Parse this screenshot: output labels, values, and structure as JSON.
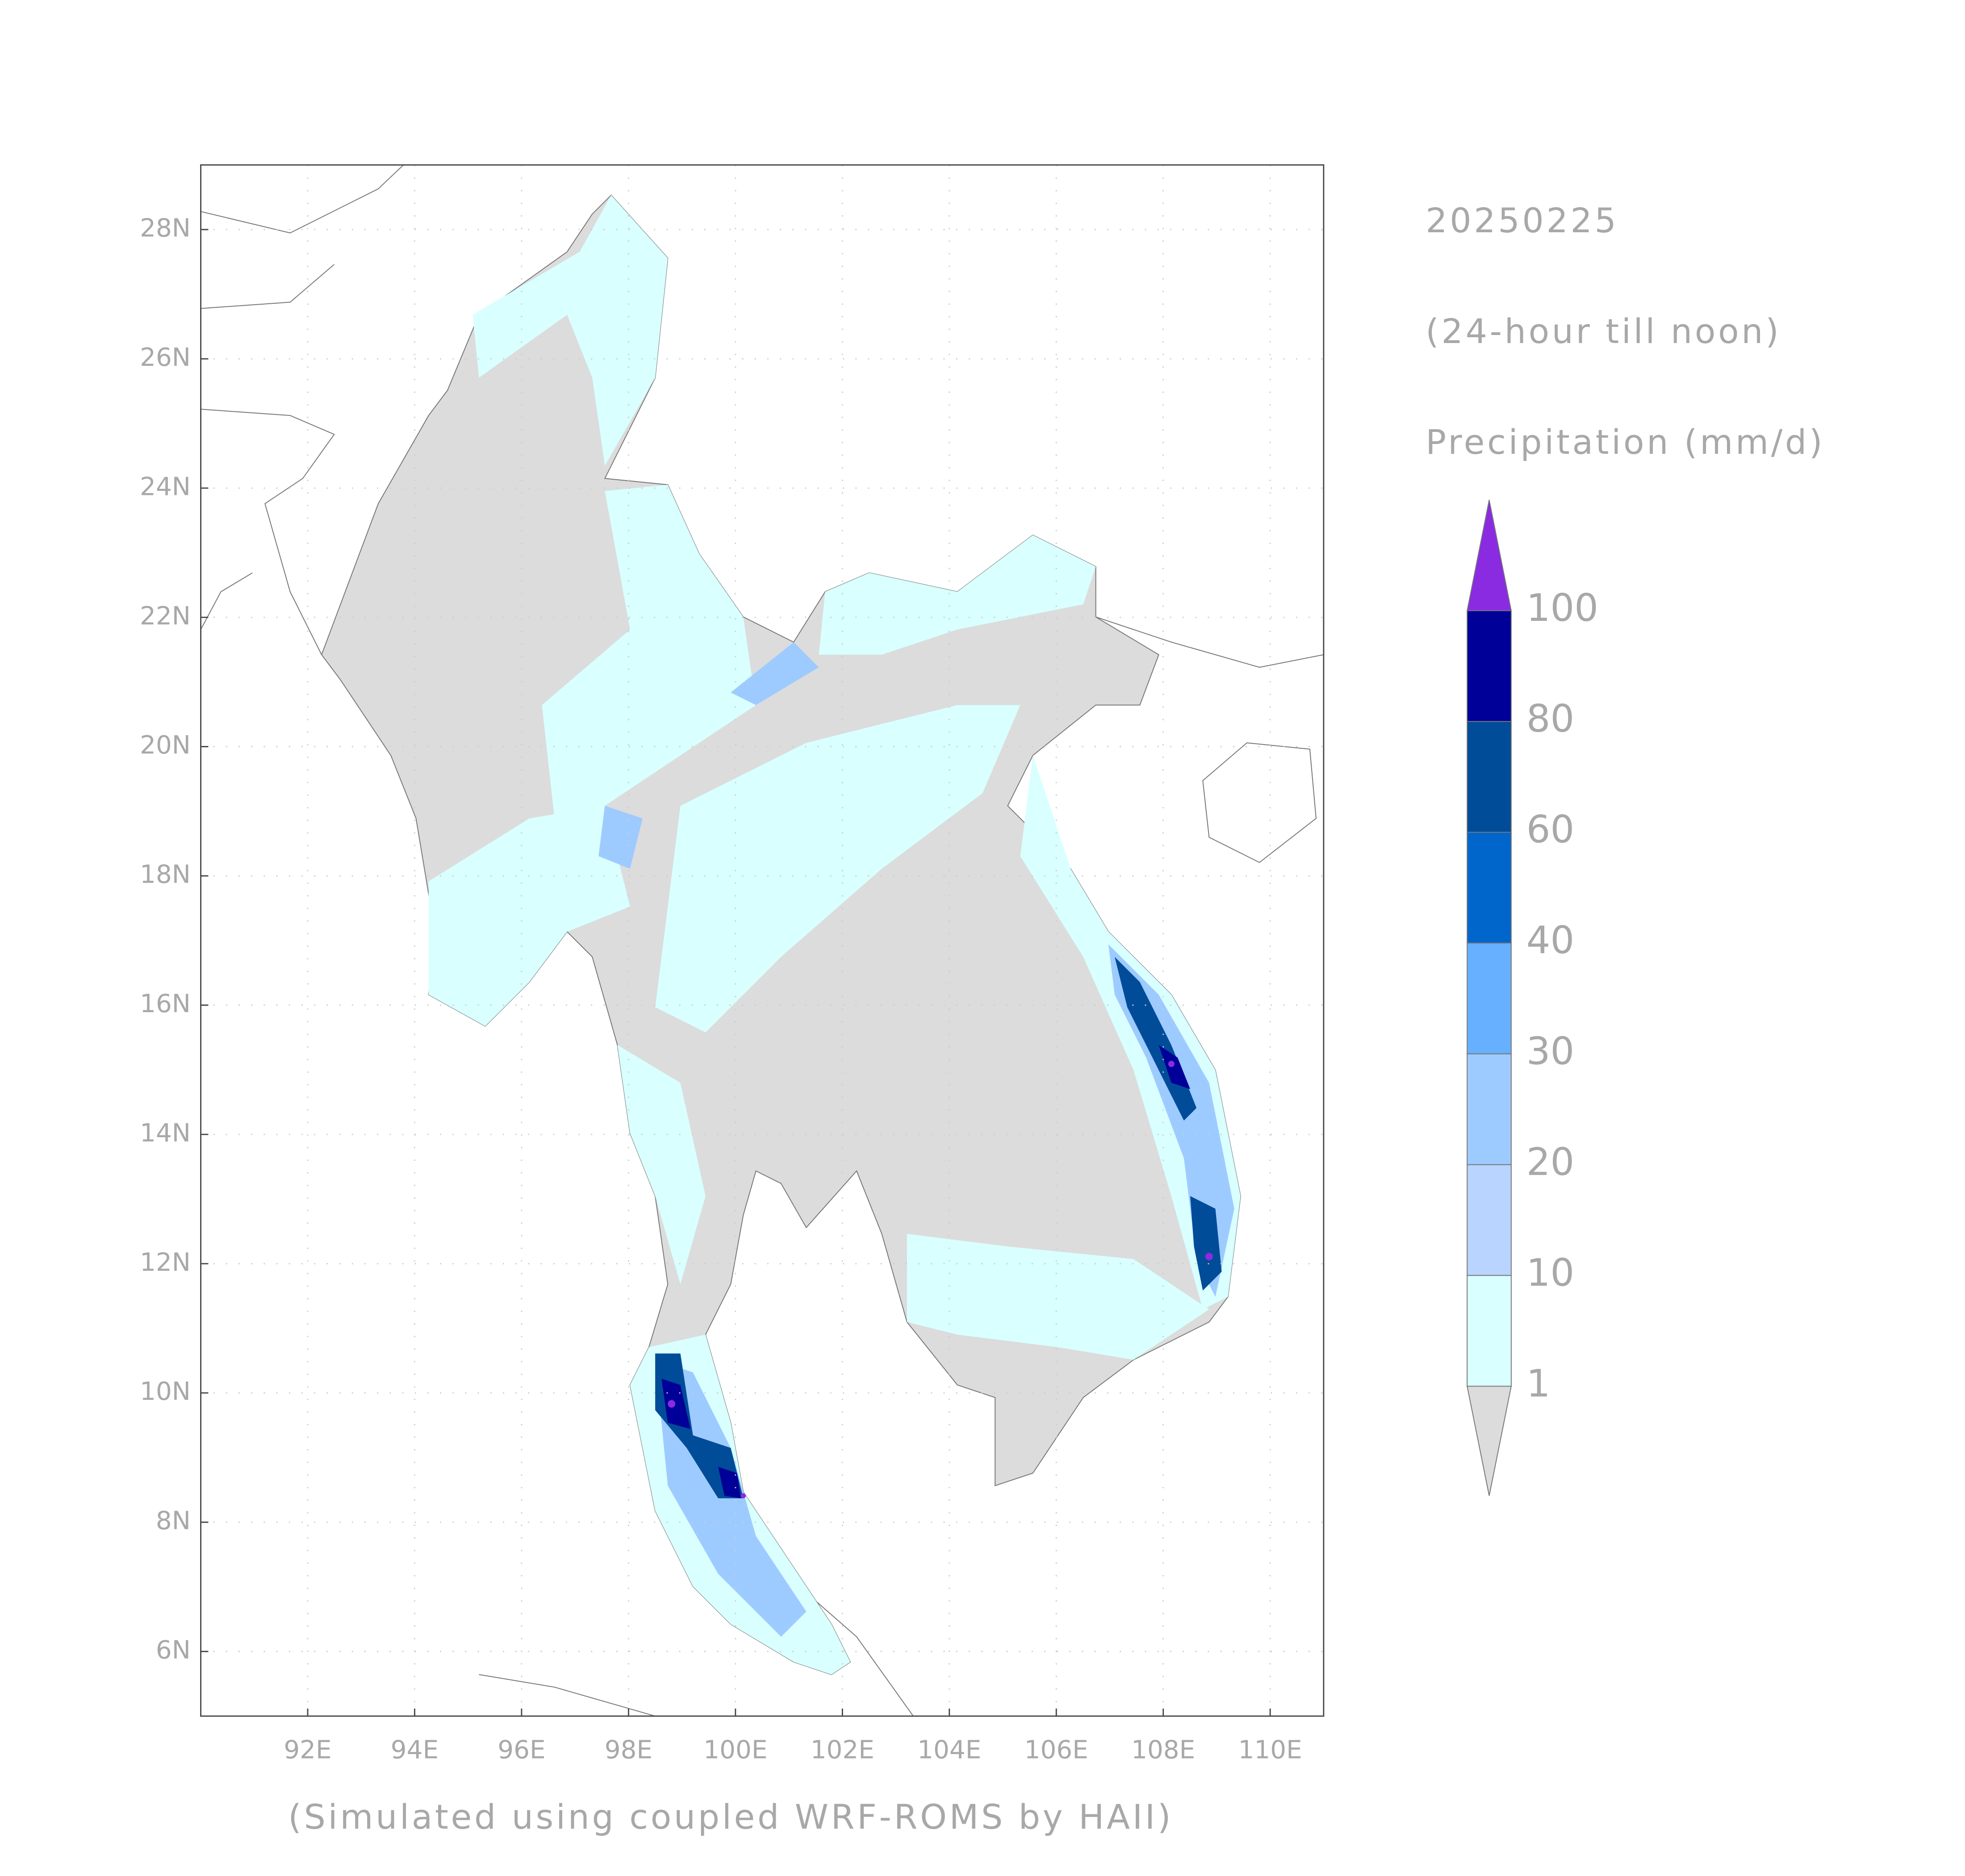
{
  "map": {
    "date": "20250225",
    "period": "(24-hour till noon)",
    "variable": "Precipitation (mm/d)",
    "credit": "(Simulated using coupled WRF-ROMS by HAII)",
    "lonlim": [
      90,
      111
    ],
    "latlim": [
      5,
      29
    ],
    "lon_ticks": [
      {
        "value": 92,
        "label": "92E"
      },
      {
        "value": 94,
        "label": "94E"
      },
      {
        "value": 96,
        "label": "96E"
      },
      {
        "value": 98,
        "label": "98E"
      },
      {
        "value": 100,
        "label": "100E"
      },
      {
        "value": 102,
        "label": "102E"
      },
      {
        "value": 104,
        "label": "104E"
      },
      {
        "value": 106,
        "label": "106E"
      },
      {
        "value": 108,
        "label": "108E"
      },
      {
        "value": 110,
        "label": "110E"
      }
    ],
    "lat_ticks": [
      {
        "value": 6,
        "label": "6N"
      },
      {
        "value": 8,
        "label": "8N"
      },
      {
        "value": 10,
        "label": "10N"
      },
      {
        "value": 12,
        "label": "12N"
      },
      {
        "value": 14,
        "label": "14N"
      },
      {
        "value": 16,
        "label": "16N"
      },
      {
        "value": 18,
        "label": "18N"
      },
      {
        "value": 20,
        "label": "20N"
      },
      {
        "value": 22,
        "label": "22N"
      },
      {
        "value": 24,
        "label": "24N"
      },
      {
        "value": 26,
        "label": "26N"
      },
      {
        "value": 28,
        "label": "28N"
      }
    ],
    "grid": true,
    "colorbar": {
      "levels": [
        1,
        10,
        20,
        30,
        40,
        60,
        80,
        100
      ],
      "under_color": "#dcdcdc",
      "colors": [
        "#d9ffff",
        "#b8d4ff",
        "#9ecbff",
        "#66b0ff",
        "#0066cc",
        "#004c99",
        "#000099"
      ],
      "over_color": "#8a2be2"
    }
  }
}
